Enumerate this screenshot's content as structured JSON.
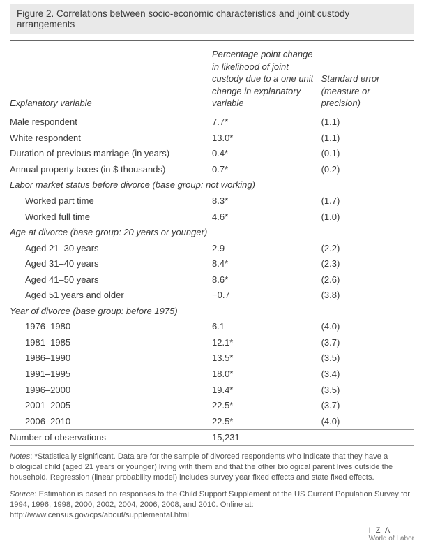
{
  "title": "Figure 2. Correlations between socio-economic characteristics and joint custody arrangements",
  "headers": {
    "variable": "Explanatory variable",
    "estimate": "Percentage point change in likelihood of joint custody due to a one unit change in explanatory variable",
    "se": "Standard error (measure or precision)"
  },
  "rows": [
    {
      "kind": "data",
      "label": "Male respondent",
      "est": "7.7*",
      "se": "(1.1)"
    },
    {
      "kind": "data",
      "label": "White respondent",
      "est": "13.0*",
      "se": "(1.1)"
    },
    {
      "kind": "data",
      "label": "Duration of previous marriage (in years)",
      "est": "0.4*",
      "se": "(0.1)"
    },
    {
      "kind": "data",
      "label": "Annual property taxes (in $ thousands)",
      "est": "0.7*",
      "se": "(0.2)"
    },
    {
      "kind": "group",
      "label": "Labor market status before divorce (base group: not working)"
    },
    {
      "kind": "sub",
      "label": "Worked part time",
      "est": "8.3*",
      "se": "(1.7)"
    },
    {
      "kind": "sub",
      "label": "Worked full time",
      "est": "4.6*",
      "se": "(1.0)"
    },
    {
      "kind": "group",
      "label": "Age at divorce (base group: 20 years or younger)"
    },
    {
      "kind": "sub",
      "label": "Aged 21–30 years",
      "est": "2.9",
      "se": "(2.2)"
    },
    {
      "kind": "sub",
      "label": "Aged 31–40 years",
      "est": "8.4*",
      "se": "(2.3)"
    },
    {
      "kind": "sub",
      "label": "Aged 41–50 years",
      "est": "8.6*",
      "se": "(2.6)"
    },
    {
      "kind": "sub",
      "label": "Aged 51 years and older",
      "est": "−0.7",
      "se": "(3.8)"
    },
    {
      "kind": "group",
      "label": "Year of divorce (base group: before 1975)"
    },
    {
      "kind": "sub",
      "label": "1976–1980",
      "est": "6.1",
      "se": "(4.0)"
    },
    {
      "kind": "sub",
      "label": "1981–1985",
      "est": "12.1*",
      "se": "(3.7)"
    },
    {
      "kind": "sub",
      "label": "1986–1990",
      "est": "13.5*",
      "se": "(3.5)"
    },
    {
      "kind": "sub",
      "label": "1991–1995",
      "est": "18.0*",
      "se": "(3.4)"
    },
    {
      "kind": "sub",
      "label": "1996–2000",
      "est": "19.4*",
      "se": "(3.5)"
    },
    {
      "kind": "sub",
      "label": "2001–2005",
      "est": "22.5*",
      "se": "(3.7)"
    },
    {
      "kind": "sub",
      "label": "2006–2010",
      "est": "22.5*",
      "se": "(4.0)"
    }
  ],
  "obs_label": "Number of observations",
  "obs_value": "15,231",
  "notes_label": "Notes",
  "notes_text": ": *Statistically significant. Data are for the sample of divorced respondents who indicate that they have a biological child (aged 21 years or younger) living with them and that the other biological parent lives outside the household. Regression (linear probability model) includes survey year fixed effects and state fixed effects.",
  "source_label": "Source",
  "source_text": ": Estimation is based on responses to the Child Support Supplement of the US Current Population Survey for 1994, 1996, 1998, 2000, 2002, 2004, 2006, 2008, and 2010. Online at: http://www.census.gov/cps/about/supplemental.html",
  "footer": {
    "iza": "I Z A",
    "wol": "World of Labor"
  }
}
